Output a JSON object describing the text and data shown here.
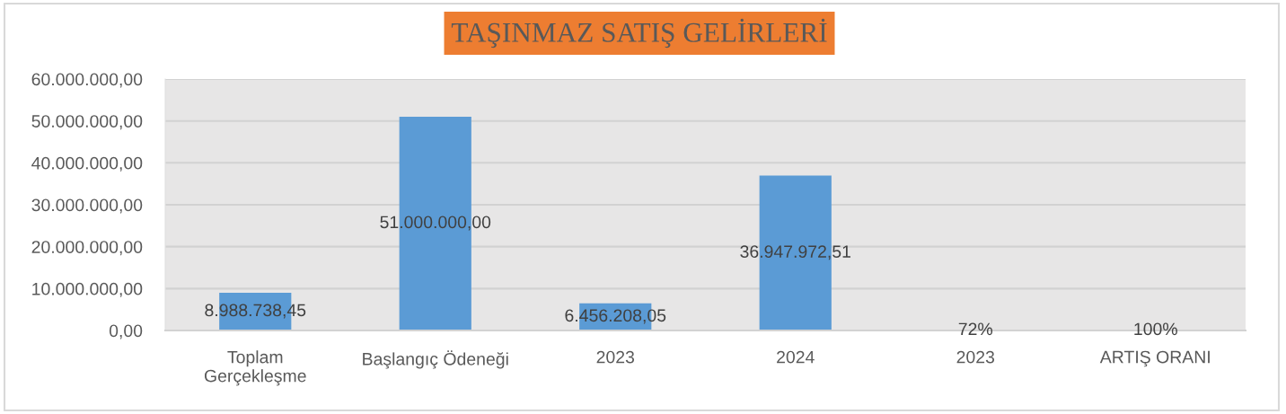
{
  "chart_data": {
    "type": "bar",
    "title": "TAŞINMAZ SATIŞ GELİRLERİ",
    "categories": [
      "Toplam\nGerçekleşme",
      "Başlangıç Ödeneği",
      "2023",
      "2024",
      "2023",
      "ARTIŞ ORANI"
    ],
    "values": [
      8988738.45,
      51000000,
      6456208.05,
      36947972.51,
      72,
      100
    ],
    "color": "#5b9bd5",
    "value_labels": [
      "8.988.738,45",
      "51.000.000,00",
      "6.456.208,05",
      "36.947.972,51",
      "72%",
      "100%"
    ],
    "ylim": [
      0,
      60000000
    ],
    "yticks": [
      {
        "value": 0,
        "label": "0,00"
      },
      {
        "value": 10000000,
        "label": "10.000.000,00"
      },
      {
        "value": 20000000,
        "label": "20.000.000,00"
      },
      {
        "value": 30000000,
        "label": "30.000.000,00"
      },
      {
        "value": 40000000,
        "label": "40.000.000,00"
      },
      {
        "value": 50000000,
        "label": "50.000.000,00"
      },
      {
        "value": 60000000,
        "label": "60.000.000,00"
      }
    ],
    "grid": "y"
  }
}
